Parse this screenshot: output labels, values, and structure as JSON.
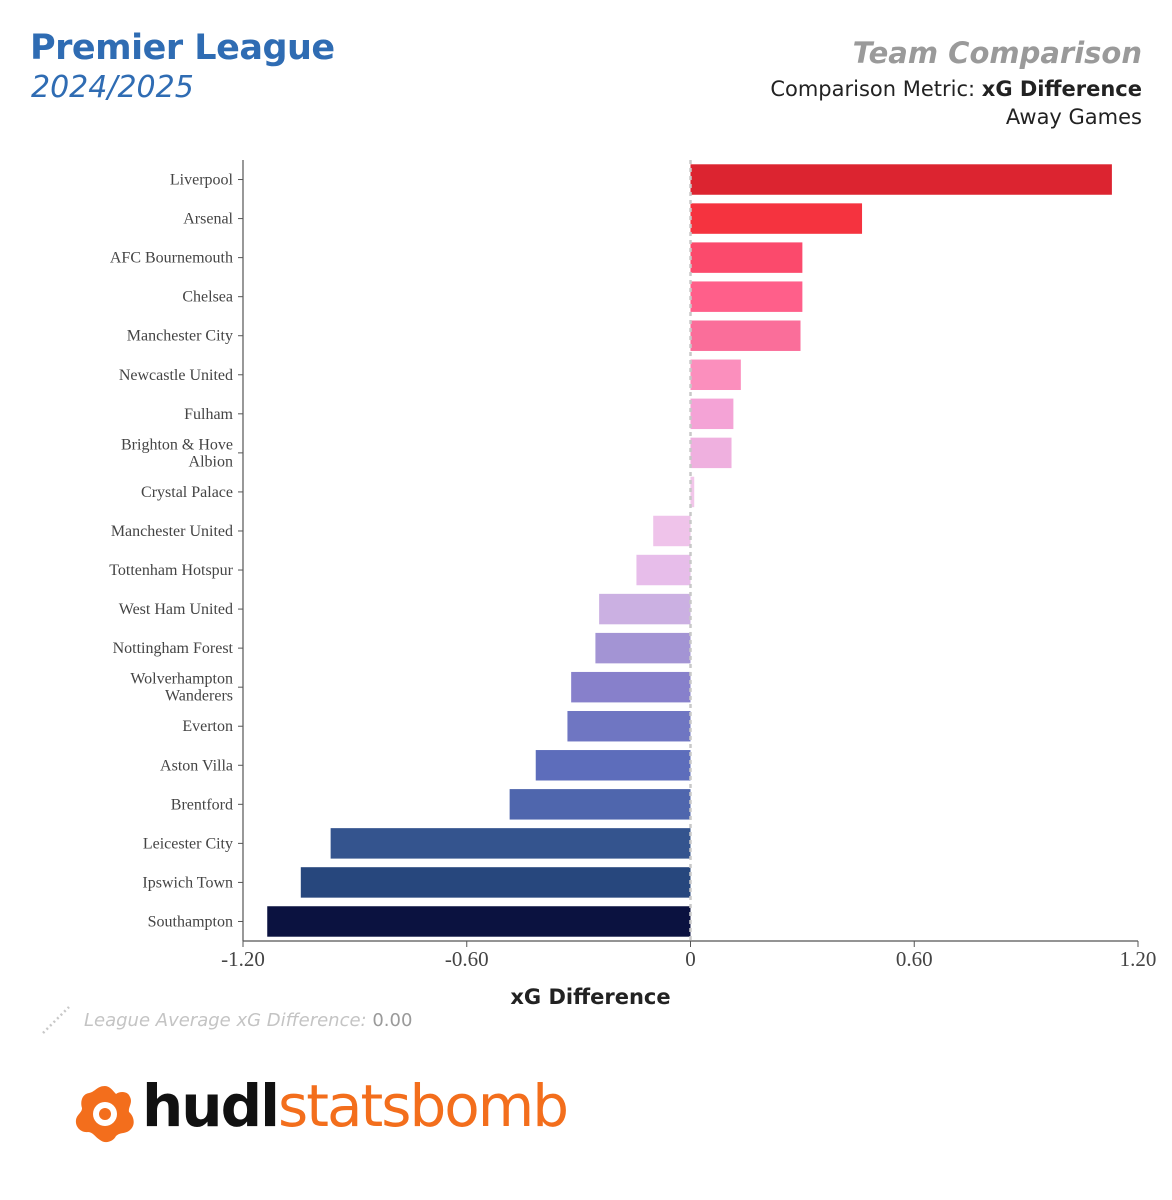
{
  "header": {
    "league": "Premier League",
    "season": "2024/2025",
    "comparison_title": "Team Comparison",
    "metric_prefix": "Comparison Metric: ",
    "metric_name": "xG Difference",
    "games_filter": "Away Games"
  },
  "legend": {
    "label": "League Average xG Difference:",
    "value": "0.00"
  },
  "logo": {
    "hudl": "hudl",
    "statsbomb": "statsbomb",
    "color": "#f36e1c"
  },
  "chart_data": {
    "type": "bar",
    "orientation": "horizontal",
    "xlabel": "xG Difference",
    "xlim": [
      -1.2,
      1.2
    ],
    "xticks": [
      -1.2,
      -0.6,
      0,
      0.6,
      1.2
    ],
    "xtick_labels": [
      "-1.20",
      "-0.60",
      "0",
      "0.60",
      "1.20"
    ],
    "reference_line": 0.0,
    "categories": [
      "Liverpool",
      "Arsenal",
      "AFC Bournemouth",
      "Chelsea",
      "Manchester City",
      "Newcastle United",
      "Fulham",
      "Brighton & Hove Albion",
      "Crystal Palace",
      "Manchester United",
      "Tottenham Hotspur",
      "West Ham United",
      "Nottingham Forest",
      "Wolverhampton Wanderers",
      "Everton",
      "Aston Villa",
      "Brentford",
      "Leicester City",
      "Ipswich Town",
      "Southampton"
    ],
    "category_lines": [
      [
        "Liverpool"
      ],
      [
        "Arsenal"
      ],
      [
        "AFC Bournemouth"
      ],
      [
        "Chelsea"
      ],
      [
        "Manchester City"
      ],
      [
        "Newcastle United"
      ],
      [
        "Fulham"
      ],
      [
        "Brighton & Hove",
        "Albion"
      ],
      [
        "Crystal Palace"
      ],
      [
        "Manchester United"
      ],
      [
        "Tottenham Hotspur"
      ],
      [
        "West Ham United"
      ],
      [
        "Nottingham Forest"
      ],
      [
        "Wolverhampton",
        "Wanderers"
      ],
      [
        "Everton"
      ],
      [
        "Aston Villa"
      ],
      [
        "Brentford"
      ],
      [
        "Leicester City"
      ],
      [
        "Ipswich Town"
      ],
      [
        "Southampton"
      ]
    ],
    "values": [
      1.13,
      0.46,
      0.3,
      0.3,
      0.295,
      0.135,
      0.115,
      0.11,
      0.01,
      -0.1,
      -0.145,
      -0.245,
      -0.255,
      -0.32,
      -0.33,
      -0.415,
      -0.485,
      -0.965,
      -1.045,
      -1.135
    ],
    "colors": [
      "#dc2430",
      "#f5333f",
      "#fb4a6c",
      "#ff5f8a",
      "#fa6e9a",
      "#fb8fbd",
      "#f4a3d6",
      "#efb0df",
      "#f2c6ea",
      "#efc3ea",
      "#e7bdea",
      "#cbb0e2",
      "#a394d4",
      "#8780cb",
      "#6f76c2",
      "#5d6dbb",
      "#4f66ad",
      "#34548e",
      "#27477d",
      "#0b1240"
    ]
  }
}
